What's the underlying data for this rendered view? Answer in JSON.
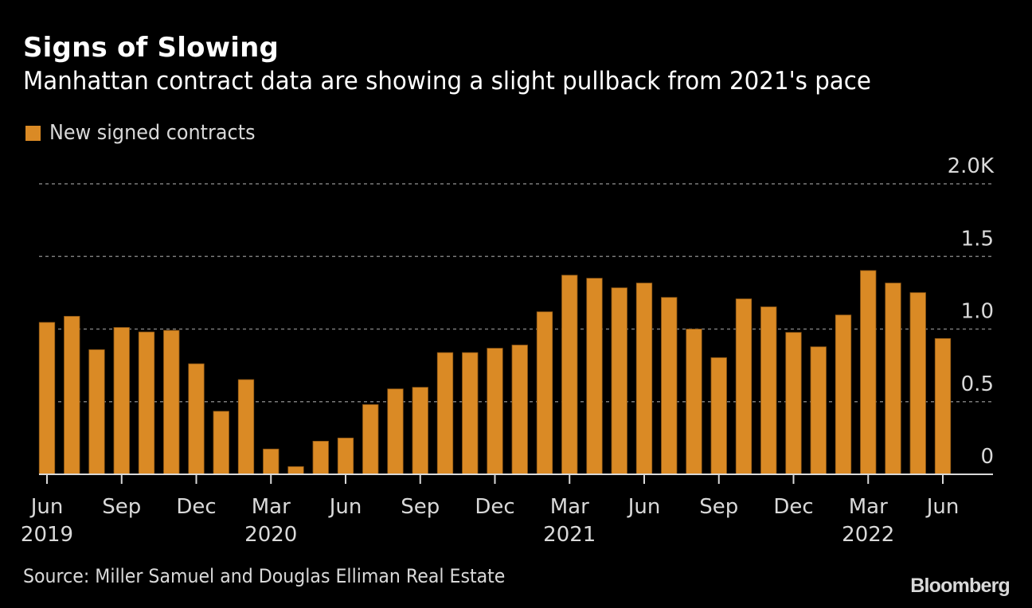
{
  "header": {
    "title": "Signs of Slowing",
    "subtitle": "Manhattan contract data are showing a slight pullback from 2021's pace"
  },
  "legend": {
    "label": "New signed contracts",
    "color": "#DA8A25"
  },
  "footer": {
    "source": "Source: Miller Samuel and Douglas Elliman Real Estate",
    "brand": "Bloomberg"
  },
  "colors": {
    "background": "#000000",
    "bar": "#DA8A25",
    "bar_border": "#8A5515",
    "grid": "#7a7a7a",
    "axis": "#d9d9d9",
    "text": "#d9d9d9"
  },
  "chart_data": {
    "type": "bar",
    "title": "Signs of Slowing",
    "subtitle": "Manhattan contract data are showing a slight pullback from 2021's pace",
    "xlabel": "",
    "ylabel": "",
    "unit": "thousands",
    "ylim": [
      0,
      2.0
    ],
    "yticks": [
      {
        "value": 0,
        "label": "0"
      },
      {
        "value": 0.5,
        "label": "0.5"
      },
      {
        "value": 1.0,
        "label": "1.0"
      },
      {
        "value": 1.5,
        "label": "1.5"
      },
      {
        "value": 2.0,
        "label": "2.0K"
      }
    ],
    "y_axis_position": "right",
    "grid": true,
    "legend_position": "top-left",
    "categories": [
      "2019-06",
      "2019-07",
      "2019-08",
      "2019-09",
      "2019-10",
      "2019-11",
      "2019-12",
      "2020-01",
      "2020-02",
      "2020-03",
      "2020-04",
      "2020-05",
      "2020-06",
      "2020-07",
      "2020-08",
      "2020-09",
      "2020-10",
      "2020-11",
      "2020-12",
      "2021-01",
      "2021-02",
      "2021-03",
      "2021-04",
      "2021-05",
      "2021-06",
      "2021-07",
      "2021-08",
      "2021-09",
      "2021-10",
      "2021-11",
      "2021-12",
      "2022-01",
      "2022-02",
      "2022-03",
      "2022-04",
      "2022-05",
      "2022-06"
    ],
    "xticks": [
      {
        "index": 0,
        "label": "Jun",
        "year": "2019"
      },
      {
        "index": 3,
        "label": "Sep",
        "year": ""
      },
      {
        "index": 6,
        "label": "Dec",
        "year": ""
      },
      {
        "index": 9,
        "label": "Mar",
        "year": "2020"
      },
      {
        "index": 12,
        "label": "Jun",
        "year": ""
      },
      {
        "index": 15,
        "label": "Sep",
        "year": ""
      },
      {
        "index": 18,
        "label": "Dec",
        "year": ""
      },
      {
        "index": 21,
        "label": "Mar",
        "year": "2021"
      },
      {
        "index": 24,
        "label": "Jun",
        "year": ""
      },
      {
        "index": 27,
        "label": "Sep",
        "year": ""
      },
      {
        "index": 30,
        "label": "Dec",
        "year": ""
      },
      {
        "index": 33,
        "label": "Mar",
        "year": "2022"
      },
      {
        "index": 36,
        "label": "Jun",
        "year": ""
      }
    ],
    "series": [
      {
        "name": "New signed contracts",
        "values": [
          1.046,
          1.088,
          0.858,
          1.011,
          0.98,
          0.991,
          0.761,
          0.434,
          0.652,
          0.174,
          0.053,
          0.228,
          0.25,
          0.48,
          0.588,
          0.599,
          0.838,
          0.838,
          0.868,
          0.89,
          1.119,
          1.371,
          1.35,
          1.284,
          1.317,
          1.218,
          1.0,
          0.803,
          1.208,
          1.153,
          0.977,
          0.878,
          1.097,
          1.403,
          1.317,
          1.251,
          0.935
        ]
      }
    ]
  }
}
